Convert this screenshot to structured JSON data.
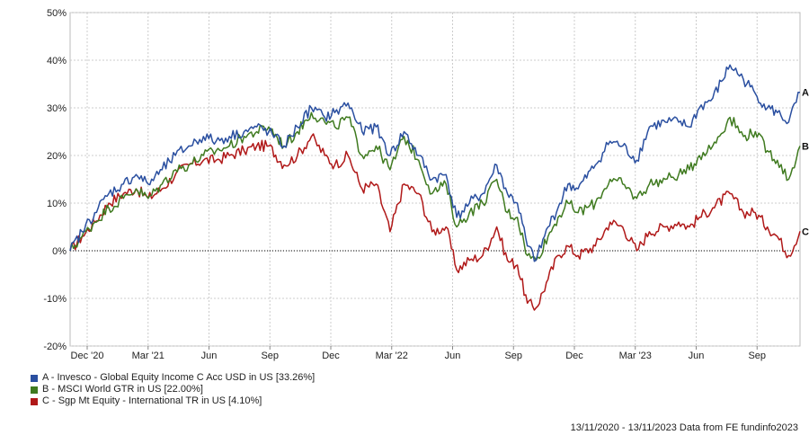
{
  "chart_data": {
    "type": "line",
    "y_ticks": [
      "50%",
      "40%",
      "30%",
      "20%",
      "10%",
      "0%",
      "-10%",
      "-20%"
    ],
    "ylim": [
      -20,
      50
    ],
    "x_ticks": [
      "Dec '20",
      "Mar '21",
      "Jun",
      "Sep",
      "Dec",
      "Mar '22",
      "Jun",
      "Sep",
      "Dec",
      "Mar '23",
      "Jun",
      "Sep"
    ],
    "x_range": [
      "2020-11-13",
      "2023-11-13"
    ],
    "grid": true,
    "legend_position": "bottom-left",
    "series": [
      {
        "key": "A",
        "name": "A - Invesco - Global Equity Income C Acc USD in US [33.26%]",
        "color": "#2a4fa0",
        "points": [
          [
            "2020-11-13",
            0
          ],
          [
            "2020-12-01",
            4
          ],
          [
            "2020-12-20",
            8
          ],
          [
            "2021-01-10",
            12
          ],
          [
            "2021-02-01",
            14
          ],
          [
            "2021-02-20",
            16
          ],
          [
            "2021-03-10",
            14
          ],
          [
            "2021-03-31",
            17
          ],
          [
            "2021-04-20",
            20
          ],
          [
            "2021-05-10",
            22
          ],
          [
            "2021-06-01",
            24
          ],
          [
            "2021-06-20",
            23
          ],
          [
            "2021-07-10",
            24
          ],
          [
            "2021-08-01",
            25
          ],
          [
            "2021-08-20",
            26
          ],
          [
            "2021-09-07",
            25
          ],
          [
            "2021-09-30",
            22
          ],
          [
            "2021-10-20",
            26
          ],
          [
            "2021-11-10",
            30
          ],
          [
            "2021-11-30",
            28
          ],
          [
            "2021-12-15",
            29
          ],
          [
            "2022-01-04",
            31
          ],
          [
            "2022-01-25",
            25
          ],
          [
            "2022-02-15",
            26
          ],
          [
            "2022-03-08",
            20
          ],
          [
            "2022-03-29",
            25
          ],
          [
            "2022-04-20",
            20
          ],
          [
            "2022-05-10",
            15
          ],
          [
            "2022-05-31",
            16
          ],
          [
            "2022-06-16",
            7
          ],
          [
            "2022-07-05",
            10
          ],
          [
            "2022-07-25",
            12
          ],
          [
            "2022-08-15",
            18
          ],
          [
            "2022-08-31",
            12
          ],
          [
            "2022-09-15",
            10
          ],
          [
            "2022-09-30",
            1
          ],
          [
            "2022-10-13",
            -2
          ],
          [
            "2022-10-31",
            5
          ],
          [
            "2022-11-15",
            9
          ],
          [
            "2022-11-30",
            14
          ],
          [
            "2022-12-15",
            13
          ],
          [
            "2023-01-10",
            18
          ],
          [
            "2023-02-01",
            23
          ],
          [
            "2023-02-20",
            22
          ],
          [
            "2023-03-13",
            19
          ],
          [
            "2023-04-01",
            26
          ],
          [
            "2023-04-25",
            27
          ],
          [
            "2023-05-15",
            27
          ],
          [
            "2023-05-31",
            26
          ],
          [
            "2023-06-15",
            30
          ],
          [
            "2023-07-05",
            32
          ],
          [
            "2023-07-31",
            39
          ],
          [
            "2023-08-20",
            36
          ],
          [
            "2023-09-07",
            33
          ],
          [
            "2023-09-25",
            30
          ],
          [
            "2023-10-10",
            29
          ],
          [
            "2023-10-27",
            27
          ],
          [
            "2023-11-13",
            33.26
          ]
        ]
      },
      {
        "key": "B",
        "name": "B - MSCI World GTR in US [22.00%]",
        "color": "#3f7a1f",
        "points": [
          [
            "2020-11-13",
            0
          ],
          [
            "2020-12-01",
            3
          ],
          [
            "2020-12-20",
            6
          ],
          [
            "2021-01-10",
            9
          ],
          [
            "2021-02-01",
            11
          ],
          [
            "2021-02-20",
            13
          ],
          [
            "2021-03-10",
            11
          ],
          [
            "2021-03-31",
            14
          ],
          [
            "2021-04-20",
            17
          ],
          [
            "2021-05-10",
            18
          ],
          [
            "2021-06-01",
            20
          ],
          [
            "2021-06-20",
            21
          ],
          [
            "2021-07-10",
            22
          ],
          [
            "2021-08-01",
            24
          ],
          [
            "2021-08-20",
            25
          ],
          [
            "2021-09-07",
            26
          ],
          [
            "2021-09-30",
            22
          ],
          [
            "2021-10-20",
            25
          ],
          [
            "2021-11-10",
            29
          ],
          [
            "2021-11-30",
            27
          ],
          [
            "2021-12-15",
            26
          ],
          [
            "2022-01-04",
            28
          ],
          [
            "2022-01-25",
            20
          ],
          [
            "2022-02-15",
            22
          ],
          [
            "2022-03-08",
            17
          ],
          [
            "2022-03-29",
            24
          ],
          [
            "2022-04-20",
            19
          ],
          [
            "2022-05-10",
            12
          ],
          [
            "2022-05-31",
            14
          ],
          [
            "2022-06-16",
            5
          ],
          [
            "2022-07-05",
            8
          ],
          [
            "2022-07-25",
            10
          ],
          [
            "2022-08-15",
            15
          ],
          [
            "2022-08-31",
            8
          ],
          [
            "2022-09-15",
            7
          ],
          [
            "2022-09-30",
            -1
          ],
          [
            "2022-10-13",
            -2
          ],
          [
            "2022-10-31",
            3
          ],
          [
            "2022-11-15",
            7
          ],
          [
            "2022-11-30",
            10
          ],
          [
            "2022-12-15",
            8
          ],
          [
            "2023-01-10",
            10
          ],
          [
            "2023-02-01",
            15
          ],
          [
            "2023-02-20",
            14
          ],
          [
            "2023-03-13",
            11
          ],
          [
            "2023-04-01",
            14
          ],
          [
            "2023-04-25",
            15
          ],
          [
            "2023-05-15",
            16
          ],
          [
            "2023-05-31",
            17
          ],
          [
            "2023-06-15",
            20
          ],
          [
            "2023-07-05",
            22
          ],
          [
            "2023-07-31",
            28
          ],
          [
            "2023-08-20",
            24
          ],
          [
            "2023-09-07",
            25
          ],
          [
            "2023-09-25",
            21
          ],
          [
            "2023-10-10",
            19
          ],
          [
            "2023-10-27",
            15
          ],
          [
            "2023-11-13",
            22.0
          ]
        ]
      },
      {
        "key": "C",
        "name": "C - Sgp Mt Equity - International TR in US [4.10%]",
        "color": "#b01818",
        "points": [
          [
            "2020-11-13",
            0
          ],
          [
            "2020-12-01",
            3
          ],
          [
            "2020-12-20",
            6
          ],
          [
            "2021-01-10",
            10
          ],
          [
            "2021-02-01",
            12
          ],
          [
            "2021-02-20",
            13
          ],
          [
            "2021-03-10",
            11
          ],
          [
            "2021-03-31",
            13
          ],
          [
            "2021-04-20",
            16
          ],
          [
            "2021-05-10",
            18
          ],
          [
            "2021-06-01",
            19
          ],
          [
            "2021-06-20",
            19
          ],
          [
            "2021-07-10",
            20
          ],
          [
            "2021-08-01",
            21
          ],
          [
            "2021-08-20",
            22
          ],
          [
            "2021-09-07",
            22
          ],
          [
            "2021-09-30",
            18
          ],
          [
            "2021-10-20",
            20
          ],
          [
            "2021-11-10",
            24
          ],
          [
            "2021-11-30",
            20
          ],
          [
            "2021-12-15",
            18
          ],
          [
            "2022-01-04",
            20
          ],
          [
            "2022-01-25",
            13
          ],
          [
            "2022-02-15",
            14
          ],
          [
            "2022-03-08",
            4
          ],
          [
            "2022-03-29",
            14
          ],
          [
            "2022-04-20",
            12
          ],
          [
            "2022-05-10",
            4
          ],
          [
            "2022-05-31",
            5
          ],
          [
            "2022-06-16",
            -4
          ],
          [
            "2022-07-05",
            -2
          ],
          [
            "2022-07-25",
            -1
          ],
          [
            "2022-08-15",
            5
          ],
          [
            "2022-08-31",
            -2
          ],
          [
            "2022-09-15",
            -3
          ],
          [
            "2022-09-30",
            -11
          ],
          [
            "2022-10-13",
            -12
          ],
          [
            "2022-10-31",
            -6
          ],
          [
            "2022-11-15",
            -1
          ],
          [
            "2022-11-30",
            1
          ],
          [
            "2022-12-15",
            -1
          ],
          [
            "2023-01-10",
            1
          ],
          [
            "2023-02-01",
            6
          ],
          [
            "2023-02-20",
            5
          ],
          [
            "2023-03-13",
            0
          ],
          [
            "2023-04-01",
            4
          ],
          [
            "2023-04-25",
            5
          ],
          [
            "2023-05-15",
            6
          ],
          [
            "2023-05-31",
            5
          ],
          [
            "2023-06-15",
            7
          ],
          [
            "2023-07-05",
            9
          ],
          [
            "2023-07-31",
            12
          ],
          [
            "2023-08-20",
            8
          ],
          [
            "2023-09-07",
            8
          ],
          [
            "2023-09-25",
            5
          ],
          [
            "2023-10-10",
            3
          ],
          [
            "2023-10-27",
            -1
          ],
          [
            "2023-11-13",
            4.1
          ]
        ]
      }
    ]
  },
  "footer": {
    "date_range": "13/11/2020 - 13/11/2023 Data from FE fundinfo2023"
  }
}
